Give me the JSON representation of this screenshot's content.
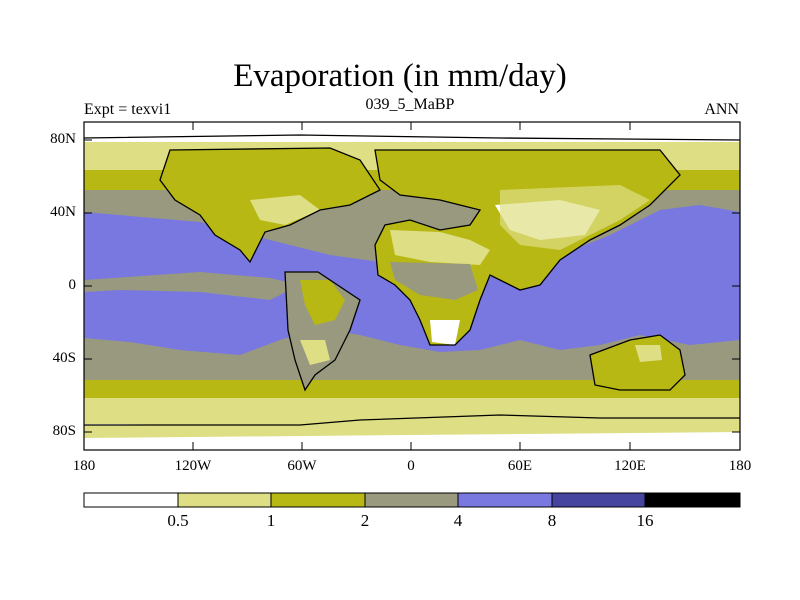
{
  "figure": {
    "title": "Evaporation (in mm/day)",
    "experiment_label": "Expt = texvi1",
    "run_label": "039_5_MaBP",
    "season_label": "ANN"
  },
  "axes": {
    "y_ticks": [
      "80N",
      "40N",
      "0",
      "40S",
      "80S"
    ],
    "x_ticks": [
      "180",
      "120W",
      "60W",
      "0",
      "60E",
      "120E",
      "180"
    ]
  },
  "colorbar": {
    "levels": [
      "0.5",
      "1",
      "2",
      "4",
      "8",
      "16"
    ],
    "colors": [
      "#ffffff",
      "#dede85",
      "#b8b814",
      "#999980",
      "#7878e0",
      "#4545a0",
      "#000000"
    ]
  },
  "palette": {
    "ocean": "#7878e0",
    "grey": "#999980",
    "olive": "#b8b814",
    "pale": "#dede85",
    "white": "#ffffff"
  }
}
